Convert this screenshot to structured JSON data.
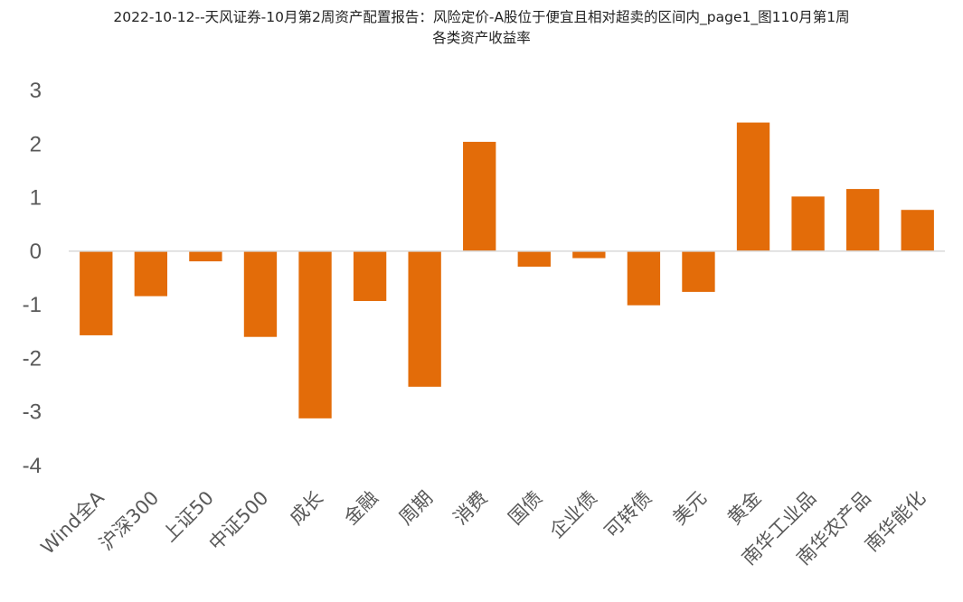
{
  "chart_data": {
    "type": "bar",
    "title_line1": "2022-10-12--天风证券-10月第2周资产配置报告：风险定价-A股位于便宜且相对超卖的区间内_page1_图110月第1周",
    "title_line2": "各类资产收益率",
    "categories": [
      "Wind全A",
      "沪深300",
      "上证50",
      "中证500",
      "成长",
      "金融",
      "周期",
      "消费",
      "国债",
      "企业债",
      "可转债",
      "美元",
      "黄金",
      "南华工业品",
      "南华农产品",
      "南华能化"
    ],
    "values": [
      -1.57,
      -0.84,
      -0.19,
      -1.6,
      -3.12,
      -0.93,
      -2.53,
      2.04,
      -0.29,
      -0.13,
      -1.01,
      -0.76,
      2.4,
      1.02,
      1.16,
      0.77
    ],
    "yticks": [
      3,
      2,
      1,
      0,
      -1,
      -2,
      -3,
      -4
    ],
    "ylim": [
      -4,
      3
    ],
    "bar_color": "#E36C09",
    "grid": false
  }
}
